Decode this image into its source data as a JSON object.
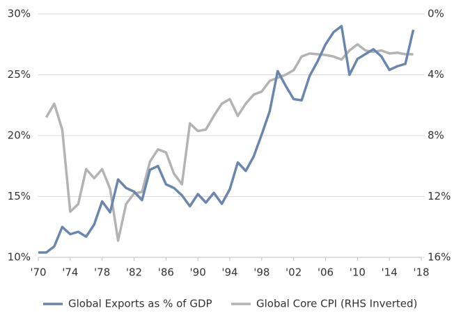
{
  "chart_data": {
    "type": "line",
    "x": [
      1970,
      1971,
      1972,
      1973,
      1974,
      1975,
      1976,
      1977,
      1978,
      1979,
      1980,
      1981,
      1982,
      1983,
      1984,
      1985,
      1986,
      1987,
      1988,
      1989,
      1990,
      1991,
      1992,
      1993,
      1994,
      1995,
      1996,
      1997,
      1998,
      1999,
      2000,
      2001,
      2002,
      2003,
      2004,
      2005,
      2006,
      2007,
      2008,
      2009,
      2010,
      2011,
      2012,
      2013,
      2014,
      2015,
      2016,
      2017
    ],
    "series": [
      {
        "name": "Global Exports as % of GDP",
        "color": "#6b86ae",
        "values": [
          10.4,
          10.4,
          10.9,
          12.5,
          11.9,
          12.1,
          11.7,
          12.7,
          14.6,
          13.7,
          16.4,
          15.7,
          15.4,
          14.7,
          17.2,
          17.5,
          16.0,
          15.7,
          15.1,
          14.2,
          15.2,
          14.5,
          15.3,
          14.4,
          15.6,
          17.8,
          17.1,
          18.3,
          20.1,
          22.0,
          25.3,
          24.1,
          23.0,
          22.9,
          24.9,
          26.1,
          27.5,
          28.5,
          29.0,
          25.0,
          26.3,
          26.7,
          27.1,
          26.5,
          25.4,
          25.7,
          25.9,
          28.7
        ]
      },
      {
        "name": "Global Core CPI (RHS Inverted)",
        "color": "#b3b3b3",
        "axis": "y2",
        "values": [
          null,
          6.8,
          5.9,
          7.6,
          13.0,
          12.5,
          10.2,
          10.8,
          10.2,
          11.5,
          14.9,
          12.5,
          11.8,
          11.7,
          9.7,
          8.9,
          9.1,
          10.5,
          11.2,
          7.2,
          7.7,
          7.6,
          6.7,
          5.9,
          5.6,
          6.7,
          5.9,
          5.3,
          5.1,
          4.4,
          4.2,
          4.0,
          3.7,
          2.8,
          2.6,
          2.65,
          2.7,
          2.8,
          3.0,
          2.4,
          2.0,
          2.4,
          2.5,
          2.4,
          2.6,
          2.55,
          2.65,
          2.65
        ]
      }
    ],
    "xlim": [
      1970,
      2018
    ],
    "xticks": [
      {
        "value": 1970,
        "label": "'70"
      },
      {
        "value": 1974,
        "label": "'74"
      },
      {
        "value": 1978,
        "label": "'78"
      },
      {
        "value": 1982,
        "label": "'82"
      },
      {
        "value": 1986,
        "label": "'86"
      },
      {
        "value": 1990,
        "label": "'90"
      },
      {
        "value": 1994,
        "label": "'94"
      },
      {
        "value": 1998,
        "label": "'98"
      },
      {
        "value": 2002,
        "label": "'02"
      },
      {
        "value": 2006,
        "label": "'06"
      },
      {
        "value": 2010,
        "label": "'10"
      },
      {
        "value": 2014,
        "label": "'14"
      },
      {
        "value": 2018,
        "label": "'18"
      }
    ],
    "ylim": [
      10,
      30
    ],
    "yticks": [
      {
        "value": 10,
        "label": "10%"
      },
      {
        "value": 15,
        "label": "15%"
      },
      {
        "value": 20,
        "label": "20%"
      },
      {
        "value": 25,
        "label": "25%"
      },
      {
        "value": 30,
        "label": "30%"
      }
    ],
    "y2lim": [
      16,
      0
    ],
    "y2ticks": [
      {
        "value": 16,
        "label": "16%"
      },
      {
        "value": 12,
        "label": "12%"
      },
      {
        "value": 8,
        "label": "8%"
      },
      {
        "value": 4,
        "label": "4%"
      },
      {
        "value": 0,
        "label": "0%"
      }
    ],
    "grid": true,
    "legend": "bottom"
  }
}
